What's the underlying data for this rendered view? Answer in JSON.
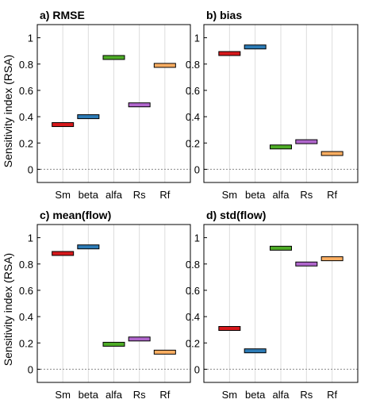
{
  "figure": {
    "ylabel": "Sensitivity index (RSA)"
  },
  "chart_data": [
    {
      "type": "bar",
      "title": "a) RMSE",
      "categories": [
        "Sm",
        "beta",
        "alfa",
        "Rs",
        "Rf"
      ],
      "values": [
        0.34,
        0.4,
        0.85,
        0.49,
        0.79
      ],
      "colors": [
        "#d7191c",
        "#2c7bb6",
        "#4dac26",
        "#b066cc",
        "#fdae61"
      ],
      "ylim": [
        -0.1,
        1.1
      ],
      "yticks": [
        0,
        0.2,
        0.4,
        0.6,
        0.8,
        1
      ],
      "ytick_labels": [
        "0",
        "0.2",
        "0.4",
        "0.6",
        "0.8",
        "1"
      ],
      "grid": "vertical"
    },
    {
      "type": "bar",
      "title": "b) bias",
      "categories": [
        "Sm",
        "beta",
        "alfa",
        "Rs",
        "Rf"
      ],
      "values": [
        0.88,
        0.93,
        0.17,
        0.21,
        0.12
      ],
      "colors": [
        "#d7191c",
        "#2c7bb6",
        "#4dac26",
        "#b066cc",
        "#fdae61"
      ],
      "ylim": [
        -0.1,
        1.1
      ],
      "yticks": [
        0,
        0.2,
        0.4,
        0.6,
        0.8,
        1
      ],
      "ytick_labels": [
        "0",
        "0.2",
        "0.4",
        "0.6",
        "0.8",
        "1"
      ],
      "grid": "vertical"
    },
    {
      "type": "bar",
      "title": "c) mean(flow)",
      "categories": [
        "Sm",
        "beta",
        "alfa",
        "Rs",
        "Rf"
      ],
      "values": [
        0.88,
        0.93,
        0.19,
        0.23,
        0.13
      ],
      "colors": [
        "#d7191c",
        "#2c7bb6",
        "#4dac26",
        "#b066cc",
        "#fdae61"
      ],
      "ylim": [
        -0.1,
        1.1
      ],
      "yticks": [
        0,
        0.2,
        0.4,
        0.6,
        0.8,
        1
      ],
      "ytick_labels": [
        "0",
        "0.2",
        "0.4",
        "0.6",
        "0.8",
        "1"
      ],
      "grid": "vertical"
    },
    {
      "type": "bar",
      "title": "d) std(flow)",
      "categories": [
        "Sm",
        "beta",
        "alfa",
        "Rs",
        "Rf"
      ],
      "values": [
        0.31,
        0.14,
        0.92,
        0.8,
        0.84
      ],
      "colors": [
        "#d7191c",
        "#2c7bb6",
        "#4dac26",
        "#b066cc",
        "#fdae61"
      ],
      "ylim": [
        -0.1,
        1.1
      ],
      "yticks": [
        0,
        0.2,
        0.4,
        0.6,
        0.8,
        1
      ],
      "ytick_labels": [
        "0",
        "0.2",
        "0.4",
        "0.6",
        "0.8",
        "1"
      ],
      "grid": "vertical"
    }
  ]
}
